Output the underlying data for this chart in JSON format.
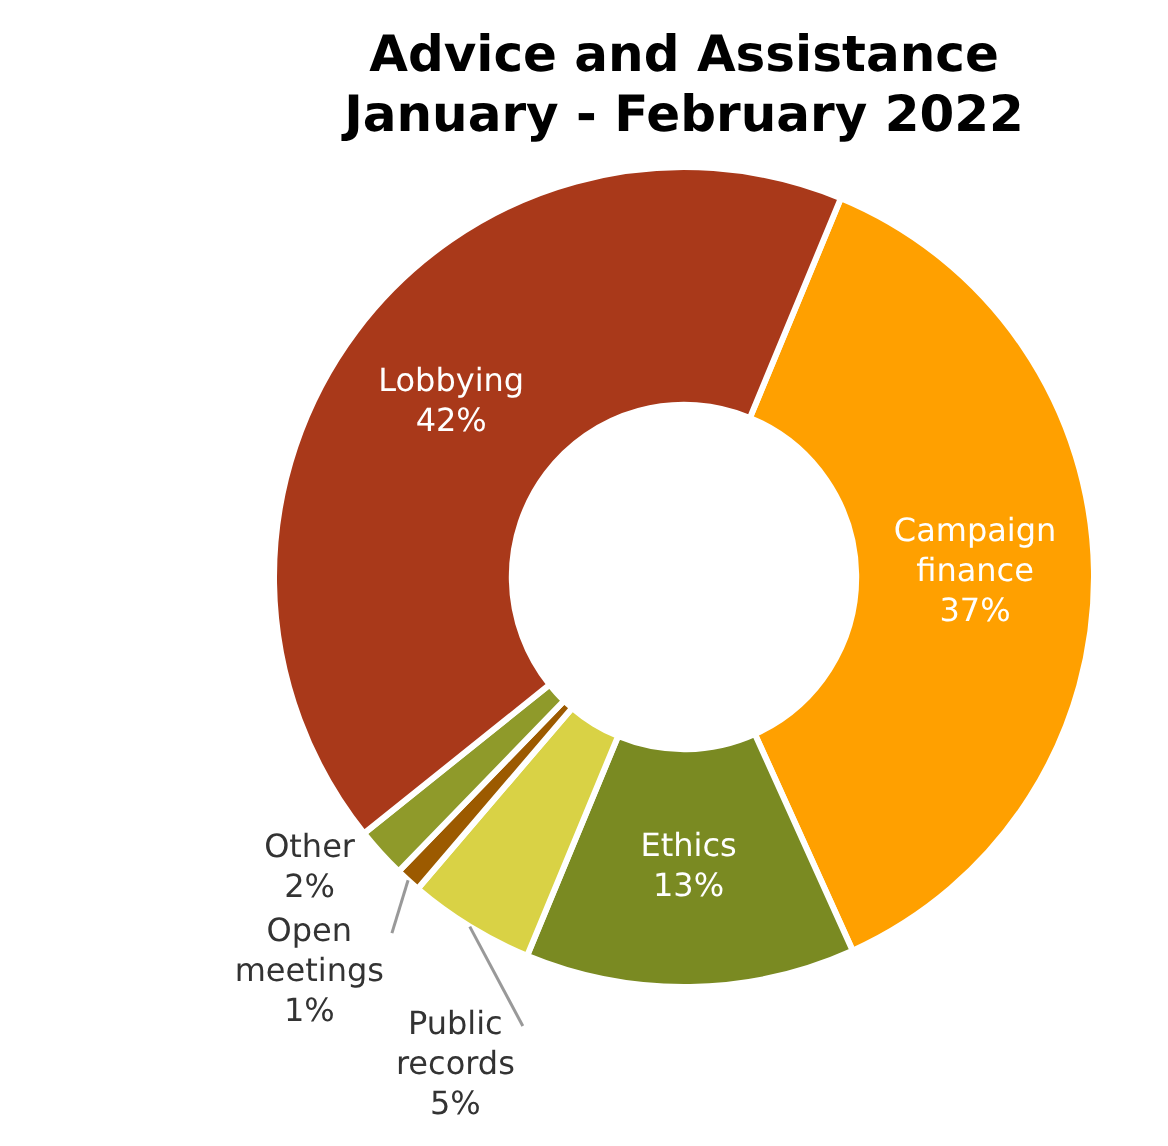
{
  "chart_data": {
    "type": "donut",
    "title": "Advice and Assistance\nJanuary - February 2022",
    "categories": [
      "Campaign finance",
      "Ethics",
      "Public records",
      "Open meetings",
      "Other",
      "Lobbying"
    ],
    "values": [
      37,
      13,
      5,
      1,
      2,
      42
    ],
    "value_labels": [
      "37%",
      "13%",
      "5%",
      "1%",
      "2%",
      "42%"
    ],
    "colors": [
      "#ffa000",
      "#7a8a22",
      "#d9d245",
      "#9c5a00",
      "#8f9a2a",
      "#a9391a"
    ],
    "legend": false
  }
}
